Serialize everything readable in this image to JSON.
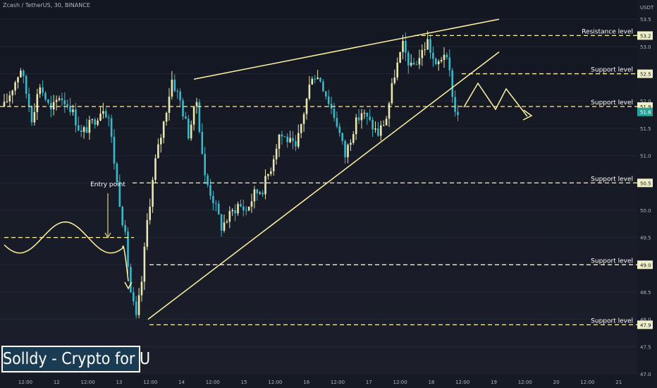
{
  "header": {
    "symbol_title": "Zcash / TetherUS, 30, BINANCE",
    "currency": "USDT"
  },
  "watermark": {
    "text": "Solldy - Crypto for U"
  },
  "colors": {
    "background": "#161a25",
    "candle_up": "#e9e6b0",
    "candle_down": "#3ab8c9",
    "annotation": "#fff3a0",
    "price_tag": "#f0efc8",
    "current_price_tag": "#26a69a",
    "axis_text": "#b2b5be"
  },
  "chart_data": {
    "type": "candlestick",
    "ylim": [
      47,
      53.8
    ],
    "y_ticks": [
      47.0,
      47.5,
      48.0,
      48.5,
      49.0,
      49.5,
      50.0,
      50.5,
      51.0,
      51.5,
      52.0,
      52.5,
      53.0,
      53.5
    ],
    "x_ticks": [
      "12:00",
      "12",
      "12:00",
      "13",
      "12:00",
      "14",
      "12:00",
      "15",
      "12:00",
      "16",
      "12:00",
      "17",
      "12:00",
      "18",
      "12:00",
      "19",
      "12:00",
      "20",
      "12:00",
      "21"
    ],
    "price_series": [
      {
        "i": 0,
        "price": 51.9
      },
      {
        "i": 6,
        "price": 52.6
      },
      {
        "i": 10,
        "price": 51.7
      },
      {
        "i": 13,
        "price": 52.3
      },
      {
        "i": 17,
        "price": 51.8
      },
      {
        "i": 20,
        "price": 52.1
      },
      {
        "i": 24,
        "price": 51.9
      },
      {
        "i": 28,
        "price": 51.4
      },
      {
        "i": 32,
        "price": 51.6
      },
      {
        "i": 36,
        "price": 51.9
      },
      {
        "i": 38,
        "price": 51.7
      },
      {
        "i": 41,
        "price": 50.5
      },
      {
        "i": 44,
        "price": 49.5
      },
      {
        "i": 46,
        "price": 48.5
      },
      {
        "i": 48,
        "price": 48.0
      },
      {
        "i": 50,
        "price": 48.7
      },
      {
        "i": 52,
        "price": 49.8
      },
      {
        "i": 55,
        "price": 50.9
      },
      {
        "i": 58,
        "price": 51.6
      },
      {
        "i": 61,
        "price": 52.4
      },
      {
        "i": 64,
        "price": 52.0
      },
      {
        "i": 67,
        "price": 51.4
      },
      {
        "i": 70,
        "price": 52.0
      },
      {
        "i": 73,
        "price": 50.6
      },
      {
        "i": 76,
        "price": 50.2
      },
      {
        "i": 79,
        "price": 49.7
      },
      {
        "i": 82,
        "price": 49.9
      },
      {
        "i": 85,
        "price": 50.1
      },
      {
        "i": 88,
        "price": 50.0
      },
      {
        "i": 91,
        "price": 50.3
      },
      {
        "i": 94,
        "price": 50.4
      },
      {
        "i": 97,
        "price": 50.8
      },
      {
        "i": 100,
        "price": 51.4
      },
      {
        "i": 103,
        "price": 51.3
      },
      {
        "i": 106,
        "price": 51.1
      },
      {
        "i": 109,
        "price": 51.8
      },
      {
        "i": 112,
        "price": 52.5
      },
      {
        "i": 115,
        "price": 52.4
      },
      {
        "i": 118,
        "price": 52.0
      },
      {
        "i": 121,
        "price": 51.6
      },
      {
        "i": 124,
        "price": 51.0
      },
      {
        "i": 127,
        "price": 51.5
      },
      {
        "i": 130,
        "price": 51.8
      },
      {
        "i": 133,
        "price": 51.6
      },
      {
        "i": 136,
        "price": 51.4
      },
      {
        "i": 139,
        "price": 51.7
      },
      {
        "i": 142,
        "price": 52.5
      },
      {
        "i": 145,
        "price": 53.0
      },
      {
        "i": 148,
        "price": 52.6
      },
      {
        "i": 151,
        "price": 52.8
      },
      {
        "i": 154,
        "price": 53.1
      },
      {
        "i": 157,
        "price": 52.6
      },
      {
        "i": 160,
        "price": 52.9
      },
      {
        "i": 162,
        "price": 52.5
      },
      {
        "i": 164,
        "price": 51.8
      }
    ],
    "levels": [
      {
        "name": "Resistance level",
        "price": 53.2,
        "tag": "53.2"
      },
      {
        "name": "Support level",
        "price": 52.5,
        "tag": "52.5"
      },
      {
        "name": "Support level",
        "price": 51.9,
        "tag": "51.9"
      },
      {
        "name": "Support level",
        "price": 50.5,
        "tag": "50.5"
      },
      {
        "name": "Support level",
        "price": 49.0,
        "tag": "49.0"
      },
      {
        "name": "Support level",
        "price": 47.9,
        "tag": "47.9"
      }
    ],
    "current_price": {
      "price": 51.8,
      "tag": "51.8"
    },
    "annotations": {
      "entry_point": {
        "label": "Entry point",
        "price": 49.5
      },
      "upper_trendline": {
        "from": {
          "i": 68,
          "price": 52.4
        },
        "to": {
          "i": 175,
          "price": 53.5
        }
      },
      "lower_trendline": {
        "from": {
          "i": 52,
          "price": 48.0
        },
        "to": {
          "i": 175,
          "price": 52.9
        }
      },
      "projection": [
        {
          "i": 165,
          "price": 52.1
        },
        {
          "i": 168,
          "price": 52.5
        },
        {
          "i": 173,
          "price": 51.9
        },
        {
          "i": 178,
          "price": 52.5
        },
        {
          "i": 185,
          "price": 51.9
        }
      ]
    }
  }
}
